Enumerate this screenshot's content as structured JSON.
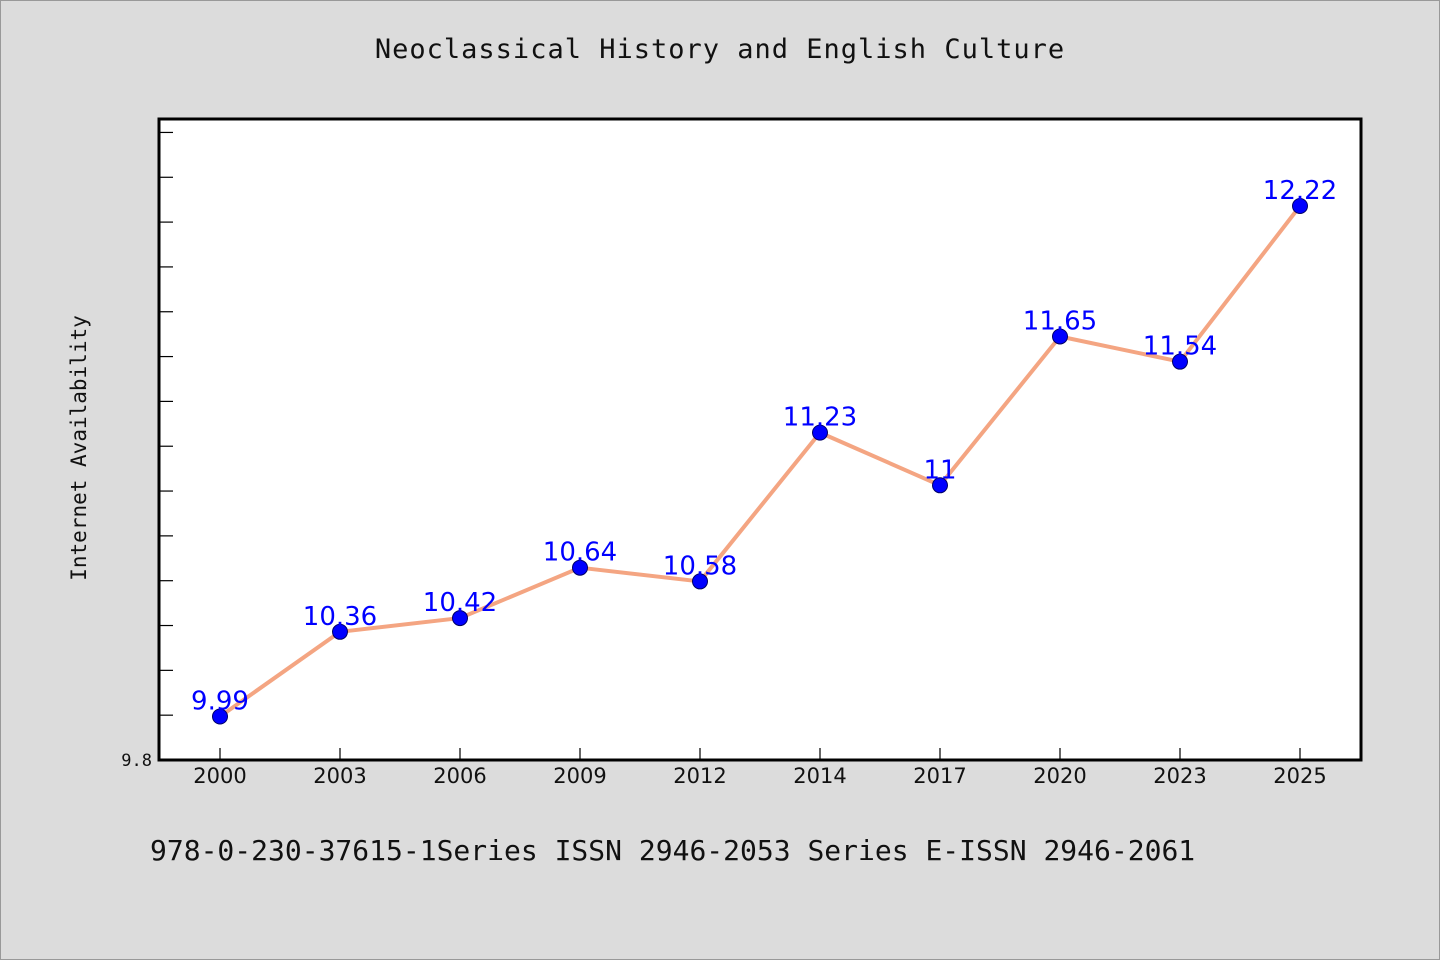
{
  "chart_data": {
    "type": "line",
    "title": "Neoclassical History and English Culture",
    "xlabel": "",
    "ylabel": "Internet Availability",
    "categories": [
      "2000",
      "2003",
      "2006",
      "2009",
      "2012",
      "2014",
      "2017",
      "2020",
      "2023",
      "2025"
    ],
    "series": [
      {
        "values": [
          9.99,
          10.36,
          10.42,
          10.64,
          10.58,
          11.23,
          11,
          11.65,
          11.54,
          12.22
        ],
        "labels": [
          "9.99",
          "10.36",
          "10.42",
          "10.64",
          "10.58",
          "11.23",
          "11",
          "11.65",
          "11.54",
          "12.22"
        ]
      }
    ],
    "ylim": [
      9.8,
      12.6
    ],
    "y_tick_label": "9.8",
    "grid": false,
    "legend": "none",
    "colors": {
      "line": "#f4a582",
      "marker": "#0000ff",
      "label": "#0000ff",
      "plot_bg": "#ffffff",
      "page_bg": "#dcdcdc"
    }
  },
  "footer": {
    "text": "978-0-230-37615-1Series ISSN 2946-2053 Series E-ISSN 2946-2061"
  }
}
